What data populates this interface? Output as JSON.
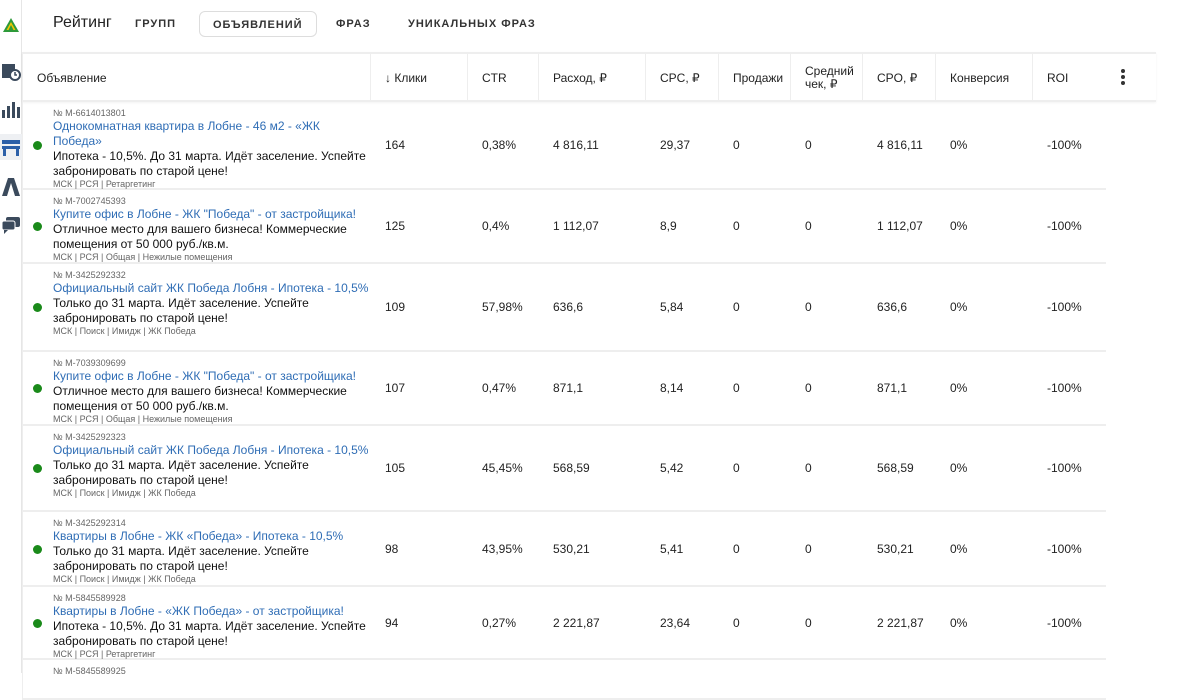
{
  "header": {
    "title": "Рейтинг",
    "tabs": [
      {
        "label": "ГРУПП",
        "active": false
      },
      {
        "label": "ОБЪЯВЛЕНИЙ",
        "active": true
      },
      {
        "label": "ФРАЗ",
        "active": false
      },
      {
        "label": "УНИКАЛЬНЫХ ФРАЗ",
        "active": false
      }
    ]
  },
  "sidebar": {
    "icons": [
      "logo-icon",
      "calendar-clock-icon",
      "bar-chart-icon",
      "table-icon",
      "road-icon",
      "chat-icon"
    ]
  },
  "colors": {
    "link": "#2f6db5",
    "status_active": "#1a8a1a"
  },
  "table": {
    "columns": [
      "Объявление",
      "↓ Клики",
      "CTR",
      "Расход, ₽",
      "CPC, ₽",
      "Продажи",
      "Средний чек, ₽",
      "CPO, ₽",
      "Конверсия",
      "ROI"
    ],
    "rows": [
      {
        "id": "№ M-6614013801",
        "title": "Однокомнатная квартира в Лобне - 46 м2 - «ЖК Победа»",
        "text": "Ипотека - 10,5%. До 31 марта. Идёт заселение. Успейте забронировать по старой цене!",
        "meta": "МСК | РСЯ | Ретаргетинг",
        "values": [
          "164",
          "0,38%",
          "4 816,11",
          "29,37",
          "0",
          "0",
          "4 816,11",
          "0%",
          "-100%"
        ]
      },
      {
        "id": "№ M-7002745393",
        "title": "Купите офис в Лобне - ЖК \"Победа\" - от застройщика!",
        "text": "Отличное место для вашего бизнеса! Коммерческие помещения от 50 000 руб./кв.м.",
        "meta": "МСК | РСЯ | Общая | Нежилые помещения",
        "values": [
          "125",
          "0,4%",
          "1 112,07",
          "8,9",
          "0",
          "0",
          "1 112,07",
          "0%",
          "-100%"
        ]
      },
      {
        "id": "№ M-3425292332",
        "title": "Официальный сайт ЖК Победа Лобня - Ипотека - 10,5%",
        "text": "Только до 31 марта. Идёт заселение. Успейте забронировать по старой цене!",
        "meta": "МСК | Поиск | Имидж | ЖК Победа",
        "values": [
          "109",
          "57,98%",
          "636,6",
          "5,84",
          "0",
          "0",
          "636,6",
          "0%",
          "-100%"
        ]
      },
      {
        "id": "№ M-7039309699",
        "title": "Купите офис в Лобне - ЖК \"Победа\" - от застройщика!",
        "text": "Отличное место для вашего бизнеса! Коммерческие помещения от 50 000 руб./кв.м.",
        "meta": "МСК | РСЯ | Общая | Нежилые помещения",
        "values": [
          "107",
          "0,47%",
          "871,1",
          "8,14",
          "0",
          "0",
          "871,1",
          "0%",
          "-100%"
        ]
      },
      {
        "id": "№ M-3425292323",
        "title": "Официальный сайт ЖК Победа Лобня - Ипотека - 10,5%",
        "text": "Только до 31 марта. Идёт заселение. Успейте забронировать по старой цене!",
        "meta": "МСК | Поиск | Имидж | ЖК Победа",
        "values": [
          "105",
          "45,45%",
          "568,59",
          "5,42",
          "0",
          "0",
          "568,59",
          "0%",
          "-100%"
        ]
      },
      {
        "id": "№ M-3425292314",
        "title": "Квартиры в Лобне - ЖК «Победа» - Ипотека - 10,5%",
        "text": "Только до 31 марта. Идёт заселение. Успейте забронировать по старой цене!",
        "meta": "МСК | Поиск | Имидж | ЖК Победа",
        "values": [
          "98",
          "43,95%",
          "530,21",
          "5,41",
          "0",
          "0",
          "530,21",
          "0%",
          "-100%"
        ]
      },
      {
        "id": "№ M-5845589928",
        "title": "Квартиры в Лобне - «ЖК Победа» - от застройщика!",
        "text": "Ипотека - 10,5%. До 31 марта. Идёт заселение. Успейте забронировать по старой цене!",
        "meta": "МСК | РСЯ | Ретаргетинг",
        "values": [
          "94",
          "0,27%",
          "2 221,87",
          "23,64",
          "0",
          "0",
          "2 221,87",
          "0%",
          "-100%"
        ]
      },
      {
        "id": "№ M-5845589925",
        "title": "",
        "text": "",
        "meta": "",
        "values": [
          "",
          "",
          "",
          "",
          "",
          "",
          "",
          "",
          ""
        ]
      }
    ]
  }
}
